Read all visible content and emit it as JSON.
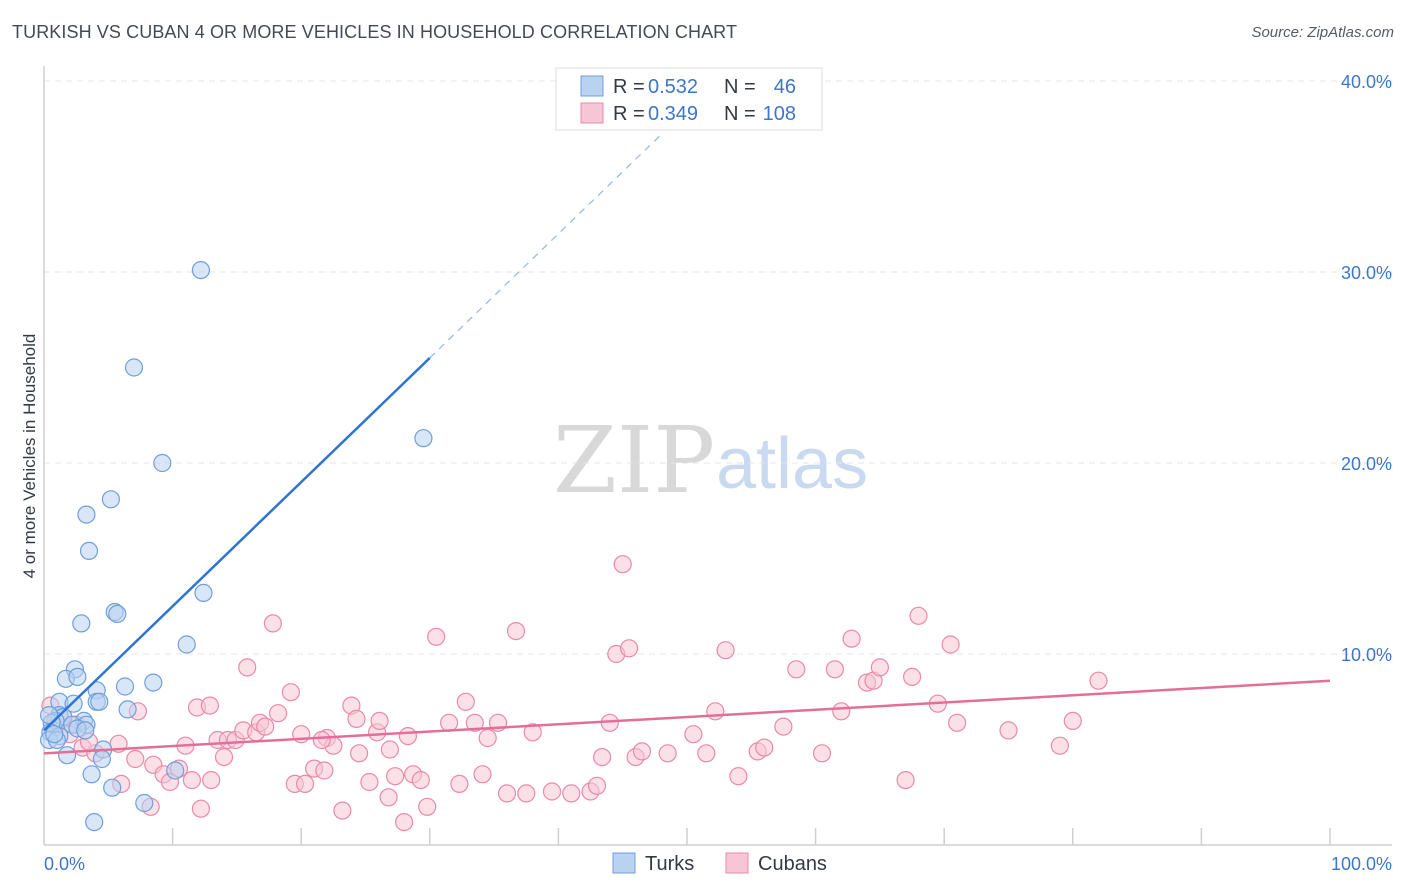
{
  "header": {
    "title": "TURKISH VS CUBAN 4 OR MORE VEHICLES IN HOUSEHOLD CORRELATION CHART",
    "source": "Source: ZipAtlas.com"
  },
  "watermark": {
    "zip": "ZIP",
    "atlas": "atlas"
  },
  "legend": {
    "r_label": "R =",
    "n_label": "N =",
    "rows": [
      {
        "r": "0.532",
        "n": "46"
      },
      {
        "r": "0.349",
        "n": "108"
      }
    ]
  },
  "bottom_legend": {
    "turks": "Turks",
    "cubans": "Cubans"
  },
  "colors": {
    "turks_fill": "#b8d2f0",
    "turks_stroke": "#6f9fdc",
    "turks_line": "#2f74d0",
    "cubans_fill": "#f7c6d6",
    "cubans_stroke": "#e88aa8",
    "cubans_line": "#e36f98",
    "tick_text": "#3d76c8",
    "grid": "#e4e4e4"
  },
  "chart_data": {
    "type": "scatter",
    "title": "TURKISH VS CUBAN 4 OR MORE VEHICLES IN HOUSEHOLD CORRELATION CHART",
    "xlabel": "",
    "ylabel": "4 or more Vehicles in Household",
    "xlim": [
      0,
      100
    ],
    "ylim": [
      0,
      42
    ],
    "y_ticks": [
      10,
      20,
      30,
      40
    ],
    "y_tick_labels": [
      "10.0%",
      "20.0%",
      "30.0%",
      "40.0%"
    ],
    "x_tick_labels": [
      "0.0%",
      "100.0%"
    ],
    "grid": true,
    "legend_position": "top-center",
    "series": [
      {
        "name": "Turks",
        "r": 0.532,
        "n": 46,
        "trend": {
          "x0": 0,
          "y0": 6.0,
          "x1": 30,
          "y1": 25.5,
          "dash_to_x": 48
        },
        "points": [
          [
            12.2,
            30.1
          ],
          [
            7.0,
            25.0
          ],
          [
            9.2,
            20.0
          ],
          [
            29.5,
            21.3
          ],
          [
            5.2,
            18.1
          ],
          [
            3.3,
            17.3
          ],
          [
            3.5,
            15.4
          ],
          [
            12.4,
            13.2
          ],
          [
            5.5,
            12.2
          ],
          [
            5.7,
            12.1
          ],
          [
            2.9,
            11.6
          ],
          [
            11.1,
            10.5
          ],
          [
            2.4,
            9.2
          ],
          [
            1.7,
            8.7
          ],
          [
            2.6,
            8.8
          ],
          [
            8.5,
            8.5
          ],
          [
            6.3,
            8.3
          ],
          [
            4.1,
            8.1
          ],
          [
            1.2,
            7.5
          ],
          [
            2.3,
            7.4
          ],
          [
            4.1,
            7.5
          ],
          [
            4.3,
            7.5
          ],
          [
            6.5,
            7.1
          ],
          [
            1.2,
            6.8
          ],
          [
            1.5,
            6.7
          ],
          [
            0.9,
            6.5
          ],
          [
            3.1,
            6.5
          ],
          [
            2.2,
            6.3
          ],
          [
            0.6,
            6.4
          ],
          [
            3.3,
            6.3
          ],
          [
            2.6,
            6.1
          ],
          [
            3.2,
            6.0
          ],
          [
            0.5,
            5.9
          ],
          [
            1.2,
            5.7
          ],
          [
            0.4,
            5.5
          ],
          [
            1.0,
            5.5
          ],
          [
            4.6,
            5.0
          ],
          [
            1.8,
            4.7
          ],
          [
            4.5,
            4.5
          ],
          [
            10.2,
            3.9
          ],
          [
            3.7,
            3.7
          ],
          [
            5.3,
            3.0
          ],
          [
            7.8,
            2.2
          ],
          [
            3.9,
            1.2
          ],
          [
            0.4,
            6.8
          ],
          [
            0.8,
            5.8
          ]
        ]
      },
      {
        "name": "Cubans",
        "r": 0.349,
        "n": 108,
        "trend": {
          "x0": 0,
          "y0": 4.8,
          "x1": 100,
          "y1": 8.6
        },
        "points": [
          [
            1.5,
            6.7
          ],
          [
            2.5,
            6.3
          ],
          [
            0.5,
            7.3
          ],
          [
            3.0,
            5.1
          ],
          [
            4.0,
            4.8
          ],
          [
            5.8,
            5.3
          ],
          [
            7.1,
            4.5
          ],
          [
            7.3,
            7.0
          ],
          [
            8.5,
            4.2
          ],
          [
            8.3,
            2.0
          ],
          [
            9.3,
            3.7
          ],
          [
            9.8,
            3.3
          ],
          [
            10.5,
            4.0
          ],
          [
            11.0,
            5.2
          ],
          [
            11.5,
            3.4
          ],
          [
            11.9,
            7.2
          ],
          [
            12.2,
            1.9
          ],
          [
            12.9,
            7.3
          ],
          [
            13.5,
            5.5
          ],
          [
            14.0,
            4.6
          ],
          [
            14.3,
            5.5
          ],
          [
            14.9,
            5.5
          ],
          [
            15.5,
            6.0
          ],
          [
            15.8,
            9.3
          ],
          [
            16.5,
            5.9
          ],
          [
            16.8,
            6.4
          ],
          [
            17.2,
            6.2
          ],
          [
            17.8,
            11.6
          ],
          [
            18.2,
            6.9
          ],
          [
            19.2,
            8.0
          ],
          [
            19.5,
            3.2
          ],
          [
            20.0,
            5.8
          ],
          [
            20.3,
            3.2
          ],
          [
            21.0,
            4.0
          ],
          [
            21.8,
            3.9
          ],
          [
            22.0,
            5.6
          ],
          [
            22.5,
            5.2
          ],
          [
            23.2,
            1.8
          ],
          [
            23.9,
            7.3
          ],
          [
            24.3,
            6.6
          ],
          [
            24.5,
            4.8
          ],
          [
            25.3,
            3.3
          ],
          [
            25.9,
            5.9
          ],
          [
            26.1,
            6.5
          ],
          [
            26.8,
            2.5
          ],
          [
            27.3,
            3.6
          ],
          [
            28.0,
            1.2
          ],
          [
            28.3,
            5.7
          ],
          [
            28.7,
            3.7
          ],
          [
            29.3,
            3.4
          ],
          [
            29.8,
            2.0
          ],
          [
            30.5,
            10.9
          ],
          [
            31.5,
            6.4
          ],
          [
            32.3,
            3.2
          ],
          [
            32.8,
            7.5
          ],
          [
            33.5,
            6.4
          ],
          [
            34.1,
            3.7
          ],
          [
            34.5,
            5.6
          ],
          [
            35.3,
            6.4
          ],
          [
            36.0,
            2.7
          ],
          [
            36.7,
            11.2
          ],
          [
            37.5,
            2.7
          ],
          [
            38.0,
            5.9
          ],
          [
            39.5,
            2.8
          ],
          [
            41.0,
            2.7
          ],
          [
            42.5,
            2.8
          ],
          [
            43.0,
            3.1
          ],
          [
            43.4,
            4.6
          ],
          [
            44.0,
            6.4
          ],
          [
            44.5,
            10.0
          ],
          [
            45.0,
            14.7
          ],
          [
            45.5,
            10.3
          ],
          [
            46.0,
            4.6
          ],
          [
            46.5,
            4.9
          ],
          [
            48.5,
            4.8
          ],
          [
            50.5,
            5.8
          ],
          [
            51.5,
            4.8
          ],
          [
            52.2,
            7.0
          ],
          [
            53.0,
            10.2
          ],
          [
            54.0,
            3.6
          ],
          [
            55.5,
            4.9
          ],
          [
            56.0,
            5.1
          ],
          [
            57.5,
            6.2
          ],
          [
            58.5,
            9.2
          ],
          [
            60.5,
            4.8
          ],
          [
            61.5,
            9.2
          ],
          [
            62.0,
            7.0
          ],
          [
            62.8,
            10.8
          ],
          [
            64.0,
            8.5
          ],
          [
            64.5,
            8.6
          ],
          [
            65.0,
            9.3
          ],
          [
            67.0,
            3.4
          ],
          [
            67.5,
            8.8
          ],
          [
            68.0,
            12.0
          ],
          [
            69.5,
            7.4
          ],
          [
            70.5,
            10.5
          ],
          [
            71.0,
            6.4
          ],
          [
            75.0,
            6.0
          ],
          [
            79.0,
            5.2
          ],
          [
            80.0,
            6.5
          ],
          [
            82.0,
            8.6
          ],
          [
            0.9,
            6.2
          ],
          [
            2.0,
            5.8
          ],
          [
            3.5,
            5.4
          ],
          [
            6.0,
            3.2
          ],
          [
            13.0,
            3.4
          ],
          [
            21.6,
            5.5
          ],
          [
            26.9,
            5.0
          ]
        ]
      }
    ]
  }
}
